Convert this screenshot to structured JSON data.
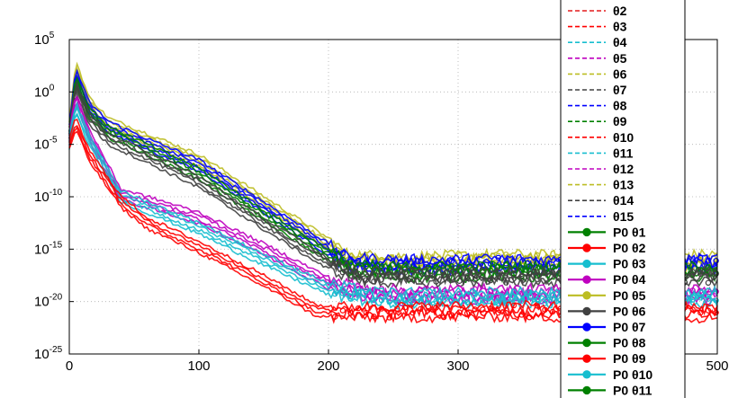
{
  "chart_data": {
    "type": "line",
    "title": "",
    "xlabel": "",
    "ylabel": "",
    "xlim": [
      0,
      500
    ],
    "ylim_log10": [
      -25,
      5
    ],
    "yscale": "log",
    "grid": true,
    "legend_position": "right, overlapping plot, clipped at top and bottom",
    "x_ticks": [
      "0",
      "100",
      "200",
      "300",
      "400",
      "500"
    ],
    "y_ticks": [
      {
        "base": "10",
        "exp": "5"
      },
      {
        "base": "10",
        "exp": "0"
      },
      {
        "base": "10",
        "exp": "-5"
      },
      {
        "base": "10",
        "exp": "-10"
      },
      {
        "base": "10",
        "exp": "-15"
      },
      {
        "base": "10",
        "exp": "-20"
      },
      {
        "base": "10",
        "exp": "-25"
      }
    ],
    "legend": [
      {
        "label": "θ2",
        "style": "dashed",
        "color": "#e41a1c"
      },
      {
        "label": "θ3",
        "style": "dashed",
        "color": "#ff0000"
      },
      {
        "label": "θ4",
        "style": "dashed",
        "color": "#17becf"
      },
      {
        "label": "θ5",
        "style": "dashed",
        "color": "#bf00bf"
      },
      {
        "label": "θ6",
        "style": "dashed",
        "color": "#bcbd22"
      },
      {
        "label": "θ7",
        "style": "dashed",
        "color": "#404040"
      },
      {
        "label": "θ8",
        "style": "dashed",
        "color": "#0000ff"
      },
      {
        "label": "θ9",
        "style": "dashed",
        "color": "#008000"
      },
      {
        "label": "θ10",
        "style": "dashed",
        "color": "#ff0000"
      },
      {
        "label": "θ11",
        "style": "dashed",
        "color": "#17becf"
      },
      {
        "label": "θ12",
        "style": "dashed",
        "color": "#bf00bf"
      },
      {
        "label": "θ13",
        "style": "dashed",
        "color": "#bcbd22"
      },
      {
        "label": "θ14",
        "style": "dashed",
        "color": "#404040"
      },
      {
        "label": "θ15",
        "style": "dashed",
        "color": "#0000ff"
      },
      {
        "label": "P0 θ1",
        "style": "solid-dot",
        "color": "#008000"
      },
      {
        "label": "P0 θ2",
        "style": "solid-dot",
        "color": "#ff0000"
      },
      {
        "label": "P0 θ3",
        "style": "solid-dot",
        "color": "#17becf"
      },
      {
        "label": "P0 θ4",
        "style": "solid-dot",
        "color": "#bf00bf"
      },
      {
        "label": "P0 θ5",
        "style": "solid-dot",
        "color": "#bcbd22"
      },
      {
        "label": "P0 θ6",
        "style": "solid-dot",
        "color": "#404040"
      },
      {
        "label": "P0 θ7",
        "style": "solid-dot",
        "color": "#0000ff"
      },
      {
        "label": "P0 θ8",
        "style": "solid-dot",
        "color": "#008000"
      },
      {
        "label": "P0 θ9",
        "style": "solid-dot",
        "color": "#ff0000"
      },
      {
        "label": "P0 θ10",
        "style": "solid-dot",
        "color": "#17becf"
      },
      {
        "label": "P0 θ11",
        "style": "solid-dot",
        "color": "#008000"
      }
    ],
    "series": [
      {
        "color": "#bcbd22",
        "x": [
          0,
          5,
          15,
          30,
          60,
          100,
          150,
          200,
          215,
          260,
          340,
          420,
          500
        ],
        "y_log10": [
          -3.5,
          2.5,
          -1.0,
          -3.0,
          -4.5,
          -6.5,
          -10.5,
          -14.5,
          -16.0,
          -16.2,
          -16.0,
          -16.2,
          -16.0
        ]
      },
      {
        "color": "#0000ff",
        "x": [
          0,
          5,
          15,
          30,
          60,
          100,
          150,
          200,
          215,
          260,
          340,
          420,
          500
        ],
        "y_log10": [
          -3.8,
          1.8,
          -1.5,
          -3.3,
          -5.0,
          -7.0,
          -11.0,
          -15.0,
          -16.3,
          -16.5,
          -16.4,
          -16.6,
          -16.4
        ]
      },
      {
        "color": "#008000",
        "x": [
          0,
          5,
          15,
          30,
          60,
          100,
          150,
          200,
          220,
          260,
          340,
          420,
          500
        ],
        "y_log10": [
          -4.0,
          1.2,
          -2.0,
          -3.8,
          -5.5,
          -7.8,
          -11.8,
          -15.6,
          -17.0,
          -17.2,
          -17.1,
          -17.3,
          -17.1
        ]
      },
      {
        "color": "#404040",
        "x": [
          0,
          5,
          15,
          30,
          60,
          100,
          150,
          200,
          225,
          260,
          340,
          420,
          500
        ],
        "y_log10": [
          -4.2,
          0.5,
          -2.5,
          -4.5,
          -6.2,
          -8.6,
          -12.6,
          -16.4,
          -17.6,
          -17.7,
          -17.6,
          -17.8,
          -17.6
        ]
      },
      {
        "color": "#bf00bf",
        "x": [
          0,
          5,
          15,
          40,
          60,
          100,
          150,
          200,
          230,
          260,
          340,
          420,
          500
        ],
        "y_log10": [
          -4.5,
          -0.5,
          -4.0,
          -9.8,
          -10.5,
          -12.0,
          -15.0,
          -18.2,
          -19.3,
          -19.4,
          -19.3,
          -19.5,
          -19.3
        ]
      },
      {
        "color": "#17becf",
        "x": [
          0,
          5,
          15,
          40,
          60,
          100,
          150,
          200,
          235,
          260,
          340,
          420,
          500
        ],
        "y_log10": [
          -4.8,
          -1.5,
          -4.5,
          -10.0,
          -11.0,
          -13.0,
          -16.0,
          -18.8,
          -19.6,
          -19.7,
          -19.6,
          -19.8,
          -19.6
        ]
      },
      {
        "color": "#ff0000",
        "x": [
          0,
          5,
          15,
          40,
          60,
          100,
          150,
          190,
          200,
          260,
          340,
          420,
          500
        ],
        "y_log10": [
          -5.0,
          -3.0,
          -6.0,
          -10.5,
          -12.5,
          -14.8,
          -18.0,
          -20.8,
          -21.0,
          -21.0,
          -20.9,
          -21.1,
          -21.0
        ]
      }
    ]
  }
}
